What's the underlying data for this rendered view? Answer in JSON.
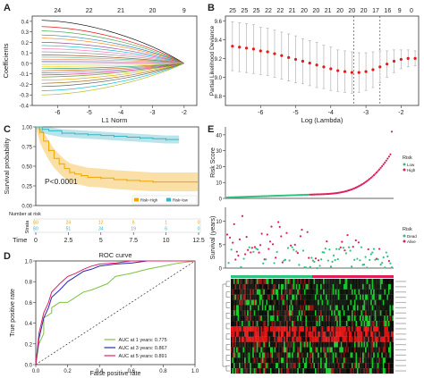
{
  "panels": {
    "A": "A",
    "B": "B",
    "C": "C",
    "D": "D",
    "E": "E"
  },
  "chart_data": [
    {
      "id": "A",
      "type": "line",
      "xlabel": "L1 Norm",
      "ylabel": "Coefficients",
      "xlim": [
        -6.8,
        -1.6
      ],
      "ylim": [
        -0.4,
        0.45
      ],
      "xticks": [
        -6,
        -5,
        -4,
        -3,
        -2
      ],
      "yticks": [
        -0.4,
        -0.3,
        -0.2,
        -0.1,
        0.0,
        0.1,
        0.2,
        0.3,
        0.4
      ],
      "top_ticks": [
        {
          "x": -6,
          "label": "24"
        },
        {
          "x": -5,
          "label": "22"
        },
        {
          "x": -4,
          "label": "21"
        },
        {
          "x": -3,
          "label": "20"
        },
        {
          "x": -2,
          "label": "9"
        }
      ],
      "paths_start_values": [
        0.41,
        0.35,
        0.31,
        0.27,
        0.24,
        0.2,
        0.17,
        0.14,
        0.11,
        0.08,
        0.06,
        0.04,
        0.02,
        0.01,
        -0.01,
        -0.03,
        -0.05,
        -0.07,
        -0.09,
        -0.11,
        -0.13,
        -0.16,
        -0.19,
        -0.22,
        -0.26,
        -0.3
      ],
      "paths_end_x": -2.0,
      "paths_end_y": 0.0
    },
    {
      "id": "B",
      "type": "scatter",
      "xlabel": "Log (Lambda)",
      "ylabel": "Partial Likelihood Deviance",
      "xlim": [
        -7.0,
        -1.5
      ],
      "ylim": [
        8.7,
        9.65
      ],
      "xticks": [
        -6,
        -5,
        -4,
        -3,
        -2
      ],
      "yticks": [
        8.8,
        9.0,
        9.2,
        9.4,
        9.6
      ],
      "top_ticks": [
        "25",
        "25",
        "25",
        "22",
        "22",
        "21",
        "20",
        "20",
        "21",
        "20",
        "20",
        "20",
        "17",
        "16",
        "9",
        "0"
      ],
      "vlines": [
        -3.35,
        -2.6
      ],
      "x": [
        -6.8,
        -6.6,
        -6.4,
        -6.2,
        -6.0,
        -5.8,
        -5.6,
        -5.4,
        -5.2,
        -5.0,
        -4.8,
        -4.6,
        -4.4,
        -4.2,
        -4.0,
        -3.8,
        -3.6,
        -3.4,
        -3.2,
        -3.0,
        -2.8,
        -2.6,
        -2.4,
        -2.2,
        -2.0,
        -1.8,
        -1.6
      ],
      "y": [
        9.33,
        9.32,
        9.31,
        9.3,
        9.28,
        9.27,
        9.25,
        9.23,
        9.21,
        9.19,
        9.17,
        9.15,
        9.13,
        9.11,
        9.09,
        9.07,
        9.06,
        9.05,
        9.05,
        9.06,
        9.08,
        9.11,
        9.14,
        9.17,
        9.19,
        9.2,
        9.2
      ],
      "err": [
        0.26,
        0.26,
        0.26,
        0.26,
        0.25,
        0.25,
        0.25,
        0.25,
        0.25,
        0.25,
        0.24,
        0.24,
        0.24,
        0.23,
        0.23,
        0.22,
        0.22,
        0.22,
        0.21,
        0.2,
        0.19,
        0.17,
        0.14,
        0.12,
        0.1,
        0.09,
        0.08
      ]
    },
    {
      "id": "C",
      "type": "line",
      "ylabel": "Survival probability",
      "xlabel": "Time",
      "xlim": [
        0,
        12.5
      ],
      "ylim": [
        0,
        1.0
      ],
      "xticks": [
        0,
        2.5,
        5,
        7.5,
        10,
        12.5
      ],
      "yticks": [
        0.0,
        0.25,
        0.5,
        0.75,
        1.0
      ],
      "ytick_labels": [
        "0.00",
        "0.25",
        "0.50",
        "0.75",
        "1.00"
      ],
      "pvalue": "P<0.0001",
      "legend": [
        "Risk=High",
        "Risk=low"
      ],
      "series": [
        {
          "name": "Risk=High",
          "x": [
            0,
            0.3,
            0.6,
            1.0,
            1.4,
            1.8,
            2.2,
            2.6,
            3.0,
            3.5,
            4.0,
            5.0,
            6.0,
            7.0,
            8.0,
            9.0,
            12.5
          ],
          "y": [
            1.0,
            0.93,
            0.82,
            0.7,
            0.6,
            0.53,
            0.47,
            0.42,
            0.4,
            0.38,
            0.36,
            0.35,
            0.33,
            0.32,
            0.31,
            0.3,
            0.3
          ]
        },
        {
          "name": "Risk=low",
          "x": [
            0,
            0.5,
            1.0,
            2.0,
            3.0,
            4.0,
            5.0,
            6.0,
            7.0,
            8.0,
            9.0,
            10.0,
            11.0
          ],
          "y": [
            1.0,
            0.97,
            0.95,
            0.92,
            0.91,
            0.9,
            0.89,
            0.88,
            0.87,
            0.86,
            0.85,
            0.84,
            0.84
          ]
        }
      ],
      "risk_table_title": "Number at risk",
      "risk_table_label": "Strata",
      "risk_high": [
        "60",
        "24",
        "12",
        "6",
        "1",
        "0"
      ],
      "risk_low": [
        "60",
        "51",
        "34",
        "19",
        "6",
        "0"
      ]
    },
    {
      "id": "D",
      "type": "line",
      "title": "ROC curve",
      "xlabel": "False positive rate",
      "ylabel": "True positive rate",
      "xlim": [
        0,
        1
      ],
      "ylim": [
        0,
        1
      ],
      "xticks": [
        0.0,
        0.2,
        0.4,
        0.6,
        0.8,
        1.0
      ],
      "yticks": [
        0.0,
        0.2,
        0.4,
        0.6,
        0.8,
        1.0
      ],
      "series": [
        {
          "name": "AUC at 1 years: 0.775",
          "color": "#7cc242",
          "x": [
            0,
            0.02,
            0.05,
            0.05,
            0.1,
            0.1,
            0.15,
            0.2,
            0.25,
            0.3,
            0.35,
            0.4,
            0.45,
            0.5,
            0.6,
            0.7,
            0.8,
            0.9,
            1.0
          ],
          "y": [
            0,
            0.2,
            0.3,
            0.45,
            0.5,
            0.55,
            0.6,
            0.6,
            0.65,
            0.7,
            0.72,
            0.75,
            0.78,
            0.85,
            0.88,
            0.92,
            0.95,
            0.98,
            1.0
          ]
        },
        {
          "name": "AUC at 3 years: 0.867",
          "color": "#2a2aa8",
          "x": [
            0,
            0.02,
            0.05,
            0.08,
            0.1,
            0.15,
            0.2,
            0.25,
            0.3,
            0.35,
            0.4,
            0.5,
            0.6,
            0.7,
            0.8,
            1.0
          ],
          "y": [
            0,
            0.25,
            0.45,
            0.55,
            0.65,
            0.72,
            0.8,
            0.85,
            0.9,
            0.92,
            0.95,
            0.97,
            0.98,
            1.0,
            1.0,
            1.0
          ]
        },
        {
          "name": "AUC at 5 years: 0.891",
          "color": "#e0206a",
          "x": [
            0,
            0.02,
            0.05,
            0.08,
            0.1,
            0.15,
            0.2,
            0.25,
            0.3,
            0.35,
            0.4,
            0.5,
            0.6,
            0.7,
            1.0
          ],
          "y": [
            0,
            0.3,
            0.5,
            0.6,
            0.7,
            0.78,
            0.85,
            0.88,
            0.92,
            0.95,
            0.97,
            0.98,
            1.0,
            1.0,
            1.0
          ]
        }
      ]
    },
    {
      "id": "E1",
      "type": "scatter",
      "ylabel": "Risk Score",
      "ylim": [
        0,
        45
      ],
      "yticks": [
        0,
        10,
        20,
        30,
        40
      ],
      "legend_title": "Risk",
      "legend": [
        {
          "name": "Low",
          "color": "#2ec27e"
        },
        {
          "name": "High",
          "color": "#e01e5a"
        }
      ],
      "n_low": 60,
      "n_high": 60
    },
    {
      "id": "E2",
      "type": "scatter",
      "ylabel": "Survival (years)",
      "ylim": [
        0,
        13
      ],
      "yticks": [
        0,
        5,
        10
      ],
      "legend_title": "Risk",
      "legend": [
        {
          "name": "Dead",
          "color": "#2ec27e"
        },
        {
          "name": "Alive",
          "color": "#e01e5a"
        }
      ]
    },
    {
      "id": "E3",
      "type": "heatmap",
      "rows": 18,
      "cols": 120
    }
  ]
}
